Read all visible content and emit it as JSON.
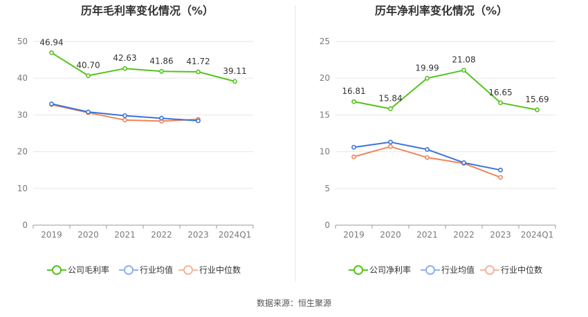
{
  "source_text": "数据来源：恒生聚源",
  "colors": {
    "company": "#52c41a",
    "industry_avg": "#3a73d9",
    "industry_median": "#f0845a",
    "legend_avg_pale": "#8fb0ee",
    "legend_median_pale": "#f5b49c",
    "grid": "#e6e6e6",
    "axis": "#999999",
    "tick_text": "#7a7a7a",
    "divider": "#e3e3e3"
  },
  "chart_data": [
    {
      "type": "line",
      "title": "历年毛利率变化情况（%）",
      "categories": [
        "2019",
        "2020",
        "2021",
        "2022",
        "2023",
        "2024Q1"
      ],
      "ylim": [
        0,
        50
      ],
      "yticks": [
        0,
        10,
        20,
        30,
        40,
        50
      ],
      "series": [
        {
          "name": "公司毛利率",
          "role": "company",
          "values": [
            46.94,
            40.7,
            42.63,
            41.86,
            41.72,
            39.11
          ],
          "labeled": true
        },
        {
          "name": "行业均值",
          "role": "industry_avg",
          "values": [
            33.0,
            30.8,
            29.8,
            29.1,
            28.4,
            null
          ],
          "labeled": false
        },
        {
          "name": "行业中位数",
          "role": "industry_median",
          "values": [
            32.8,
            30.6,
            28.6,
            28.3,
            28.8,
            null
          ],
          "labeled": false
        }
      ]
    },
    {
      "type": "line",
      "title": "历年净利率变化情况（%）",
      "categories": [
        "2019",
        "2020",
        "2021",
        "2022",
        "2023",
        "2024Q1"
      ],
      "ylim": [
        0,
        25
      ],
      "yticks": [
        0,
        5,
        10,
        15,
        20,
        25
      ],
      "series": [
        {
          "name": "公司净利率",
          "role": "company",
          "values": [
            16.81,
            15.84,
            19.99,
            21.08,
            16.65,
            15.69
          ],
          "labeled": true
        },
        {
          "name": "行业均值",
          "role": "industry_avg",
          "values": [
            10.6,
            11.3,
            10.3,
            8.5,
            7.5,
            null
          ],
          "labeled": false
        },
        {
          "name": "行业中位数",
          "role": "industry_median",
          "values": [
            9.3,
            10.7,
            9.2,
            8.4,
            6.5,
            null
          ],
          "labeled": false
        }
      ]
    }
  ]
}
